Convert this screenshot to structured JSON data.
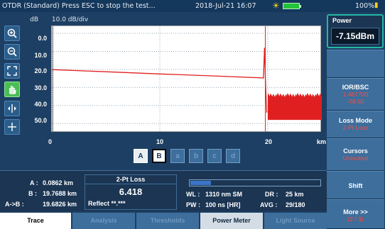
{
  "titlebar": {
    "title": "OTDR (Standard) Press ESC to stop the test...",
    "datetime": "2018-Jul-21 16:07",
    "battery_percent": "100%"
  },
  "graph": {
    "y_unit": "dB",
    "scale": "10.0 dB/div",
    "x_unit": "km"
  },
  "chart_data": {
    "type": "line",
    "xlabel": "km",
    "ylabel": "dB",
    "x_ticks": [
      "0",
      "10",
      "20"
    ],
    "y_ticks": [
      "0.0",
      "10.0",
      "20.0",
      "30.0",
      "40.0",
      "50.0"
    ],
    "xlim": [
      0,
      25
    ],
    "ylim": [
      0,
      55
    ],
    "series": [
      {
        "points": [
          [
            0,
            20.1
          ],
          [
            5,
            21.3
          ],
          [
            10,
            22.5
          ],
          [
            15,
            23.6
          ],
          [
            19.6,
            24.7
          ],
          [
            19.7,
            8.0
          ],
          [
            19.8,
            30.0
          ],
          [
            19.9,
            44.0
          ]
        ]
      }
    ],
    "noise_floor": {
      "x_start": 20.0,
      "x_end": 25.0,
      "y_min": 33.0,
      "y_max": 48.0
    },
    "markers": [
      {
        "x": 0.0862,
        "label": "A"
      },
      {
        "x": 19.7688,
        "label": "B"
      }
    ],
    "grid": true
  },
  "cursor_buttons": [
    {
      "label": "A",
      "state": "on"
    },
    {
      "label": "B",
      "state": "selected"
    },
    {
      "label": "a",
      "state": "off"
    },
    {
      "label": "b",
      "state": "off"
    },
    {
      "label": "c",
      "state": "off"
    },
    {
      "label": "d",
      "state": "off"
    }
  ],
  "info": {
    "a_label": "A :",
    "a_value": "0.0862 km",
    "b_label": "B :",
    "b_value": "19.7688 km",
    "ab_label": "A->B :",
    "ab_value": "19.6826 km",
    "loss_header": "2-Pt Loss",
    "loss_value": "6.418",
    "reflect": "Reflect  **.***",
    "wl_label": "WL :",
    "wl_value": "1310 nm SM",
    "dr_label": "DR :",
    "dr_value": "25 km",
    "pw_label": "PW :",
    "pw_value": "100 ns [HR]",
    "avg_label": "AVG :",
    "avg_value": "29/180",
    "progress": 0.16
  },
  "power": {
    "label": "Power",
    "value": "-7.15dBm"
  },
  "right_buttons": {
    "ior_label": "IOR/BSC",
    "ior_value1": "1.467700",
    "ior_value2": "-78.50",
    "loss_mode_label": "Loss Mode",
    "loss_mode_value": "2-Pt Loss",
    "cursors_label": "Cursors",
    "cursors_value": "Unlocked",
    "shift_label": "Shift",
    "more_label": "More >>",
    "more_value": "(2 / 3)"
  },
  "tabs": [
    {
      "label": "Trace",
      "state": "active"
    },
    {
      "label": "Analysis",
      "state": "dim"
    },
    {
      "label": "Thresholds",
      "state": "dim"
    },
    {
      "label": "Power Meter",
      "state": "normal"
    },
    {
      "label": "Light Source",
      "state": "dim"
    }
  ],
  "colors": {
    "trace": "#e02020",
    "accent": "#23b8a5",
    "active_tool": "#4bbd55"
  }
}
